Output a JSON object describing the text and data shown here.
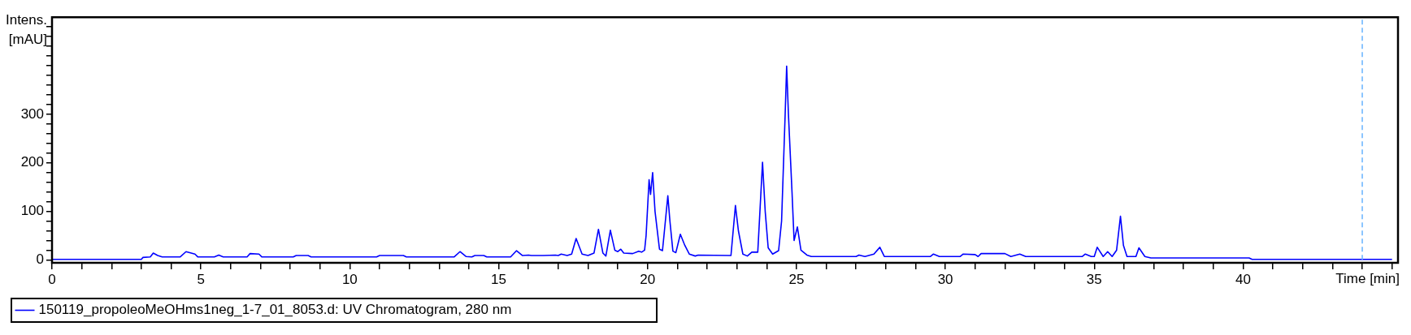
{
  "chart_data": {
    "type": "line",
    "xlabel": "Time [min]",
    "ylabel": "Intens. [mAU]",
    "xlim": [
      0,
      45.2
    ],
    "ylim": [
      -6,
      500
    ],
    "xticks": [
      0,
      {
        "value": 1,
        "label": null
      },
      {
        "value": 2,
        "label": null
      },
      {
        "value": 3,
        "label": null
      },
      {
        "value": 4,
        "label": null
      },
      5,
      {
        "value": 6,
        "label": null
      },
      {
        "value": 7,
        "label": null
      },
      {
        "value": 8,
        "label": null
      },
      {
        "value": 9,
        "label": null
      },
      10,
      {
        "value": 11,
        "label": null
      },
      {
        "value": 12,
        "label": null
      },
      {
        "value": 13,
        "label": null
      },
      {
        "value": 14,
        "label": null
      },
      15,
      {
        "value": 16,
        "label": null
      },
      {
        "value": 17,
        "label": null
      },
      {
        "value": 18,
        "label": null
      },
      {
        "value": 19,
        "label": null
      },
      20,
      {
        "value": 21,
        "label": null
      },
      {
        "value": 22,
        "label": null
      },
      {
        "value": 23,
        "label": null
      },
      {
        "value": 24,
        "label": null
      },
      25,
      {
        "value": 26,
        "label": null
      },
      {
        "value": 27,
        "label": null
      },
      {
        "value": 28,
        "label": null
      },
      {
        "value": 29,
        "label": null
      },
      30,
      {
        "value": 31,
        "label": null
      },
      {
        "value": 32,
        "label": null
      },
      {
        "value": 33,
        "label": null
      },
      {
        "value": 34,
        "label": null
      },
      35,
      {
        "value": 36,
        "label": null
      },
      {
        "value": 37,
        "label": null
      },
      {
        "value": 38,
        "label": null
      },
      {
        "value": 39,
        "label": null
      },
      40,
      {
        "value": 41,
        "label": null
      },
      {
        "value": 42,
        "label": null
      },
      {
        "value": 43,
        "label": null
      },
      {
        "value": 44,
        "label": null
      },
      {
        "value": 45,
        "label": null
      }
    ],
    "yticks": [
      0,
      {
        "value": 20,
        "label": null
      },
      {
        "value": 40,
        "label": null
      },
      {
        "value": 60,
        "label": null
      },
      {
        "value": 80,
        "label": null
      },
      100,
      {
        "value": 120,
        "label": null
      },
      {
        "value": 140,
        "label": null
      },
      {
        "value": 160,
        "label": null
      },
      {
        "value": 180,
        "label": null
      },
      200,
      {
        "value": 220,
        "label": null
      },
      {
        "value": 240,
        "label": null
      },
      {
        "value": 260,
        "label": null
      },
      {
        "value": 280,
        "label": null
      },
      300,
      {
        "value": 320,
        "label": null
      },
      {
        "value": 340,
        "label": null
      },
      {
        "value": 360,
        "label": null
      },
      {
        "value": 380,
        "label": null
      },
      {
        "value": 400,
        "label": null
      },
      {
        "value": 420,
        "label": null
      },
      {
        "value": 440,
        "label": null
      },
      {
        "value": 460,
        "label": null
      },
      {
        "value": 480,
        "label": null
      }
    ],
    "grid": false,
    "legend": "bottom",
    "marker": "none",
    "line_style": "solid",
    "ref_lines": [
      {
        "axis": "x",
        "value": 44,
        "color": "#66b3ff",
        "line_style": "dashed"
      }
    ],
    "series": [
      {
        "name": "150119_propoleoMeOHms1neg_1-7_01_8053.d: UV Chromatogram, 280 nm",
        "color": "#0000ff",
        "x": [
          0,
          3,
          3.05,
          3.3,
          3.4,
          3.55,
          3.7,
          4.3,
          4.5,
          4.8,
          4.9,
          5.45,
          5.6,
          5.75,
          6.55,
          6.65,
          6.95,
          7.05,
          8.1,
          8.2,
          8.6,
          8.7,
          10.9,
          11,
          11.8,
          11.9,
          13.5,
          13.7,
          13.9,
          14.1,
          14.2,
          14.5,
          14.6,
          15.4,
          15.6,
          15.8,
          16,
          16.1,
          16.5,
          16.9,
          17,
          17.1,
          17.3,
          17.45,
          17.6,
          17.8,
          18,
          18.2,
          18.35,
          18.5,
          18.6,
          18.75,
          18.9,
          19,
          19.1,
          19.2,
          19.5,
          19.7,
          19.8,
          19.9,
          19.95,
          20.05,
          20.1,
          20.17,
          20.25,
          20.4,
          20.5,
          20.55,
          20.68,
          20.75,
          20.85,
          20.95,
          21.1,
          21.25,
          21.4,
          21.6,
          21.7,
          22.8,
          22.95,
          23.05,
          23.2,
          23.35,
          23.5,
          23.7,
          23.86,
          23.95,
          24.05,
          24.2,
          24.4,
          24.5,
          24.62,
          24.67,
          24.73,
          24.85,
          24.92,
          25.03,
          25.15,
          25.35,
          25.5,
          27,
          27.1,
          27.3,
          27.6,
          27.8,
          27.95,
          29.5,
          29.6,
          29.8,
          30.5,
          30.6,
          31,
          31.1,
          31.2,
          32,
          32.2,
          32.5,
          32.7,
          34.6,
          34.7,
          34.9,
          35,
          35.1,
          35.3,
          35.45,
          35.6,
          35.75,
          35.88,
          35.98,
          36.1,
          36.4,
          36.5,
          36.7,
          36.9,
          40.2,
          40.3,
          45
        ],
        "values": [
          1,
          1,
          5,
          6,
          14,
          9,
          6,
          6,
          17,
          12,
          6,
          6,
          10,
          6,
          6,
          13,
          12,
          6,
          6,
          9,
          9,
          6,
          6,
          9,
          9,
          6,
          6,
          17,
          7,
          6,
          9,
          9,
          6,
          6,
          19,
          9,
          10,
          9,
          9,
          10,
          9,
          12,
          9,
          12,
          44,
          12,
          9,
          14,
          63,
          14,
          8,
          61,
          20,
          17,
          22,
          14,
          13,
          18,
          16,
          20,
          50,
          165,
          135,
          180,
          100,
          22,
          19,
          50,
          132,
          80,
          18,
          15,
          53,
          30,
          12,
          8,
          10,
          9,
          112,
          60,
          12,
          8,
          16,
          16,
          201,
          100,
          25,
          12,
          19,
          80,
          300,
          399,
          300,
          140,
          40,
          68,
          20,
          10,
          7,
          7,
          10,
          7,
          12,
          26,
          7,
          7,
          12,
          7,
          7,
          12,
          11,
          7,
          13,
          13,
          7,
          12,
          7,
          7,
          12,
          7,
          7,
          26,
          7,
          17,
          7,
          20,
          90,
          30,
          7,
          7,
          25,
          7,
          4,
          4,
          1,
          1
        ]
      }
    ]
  }
}
